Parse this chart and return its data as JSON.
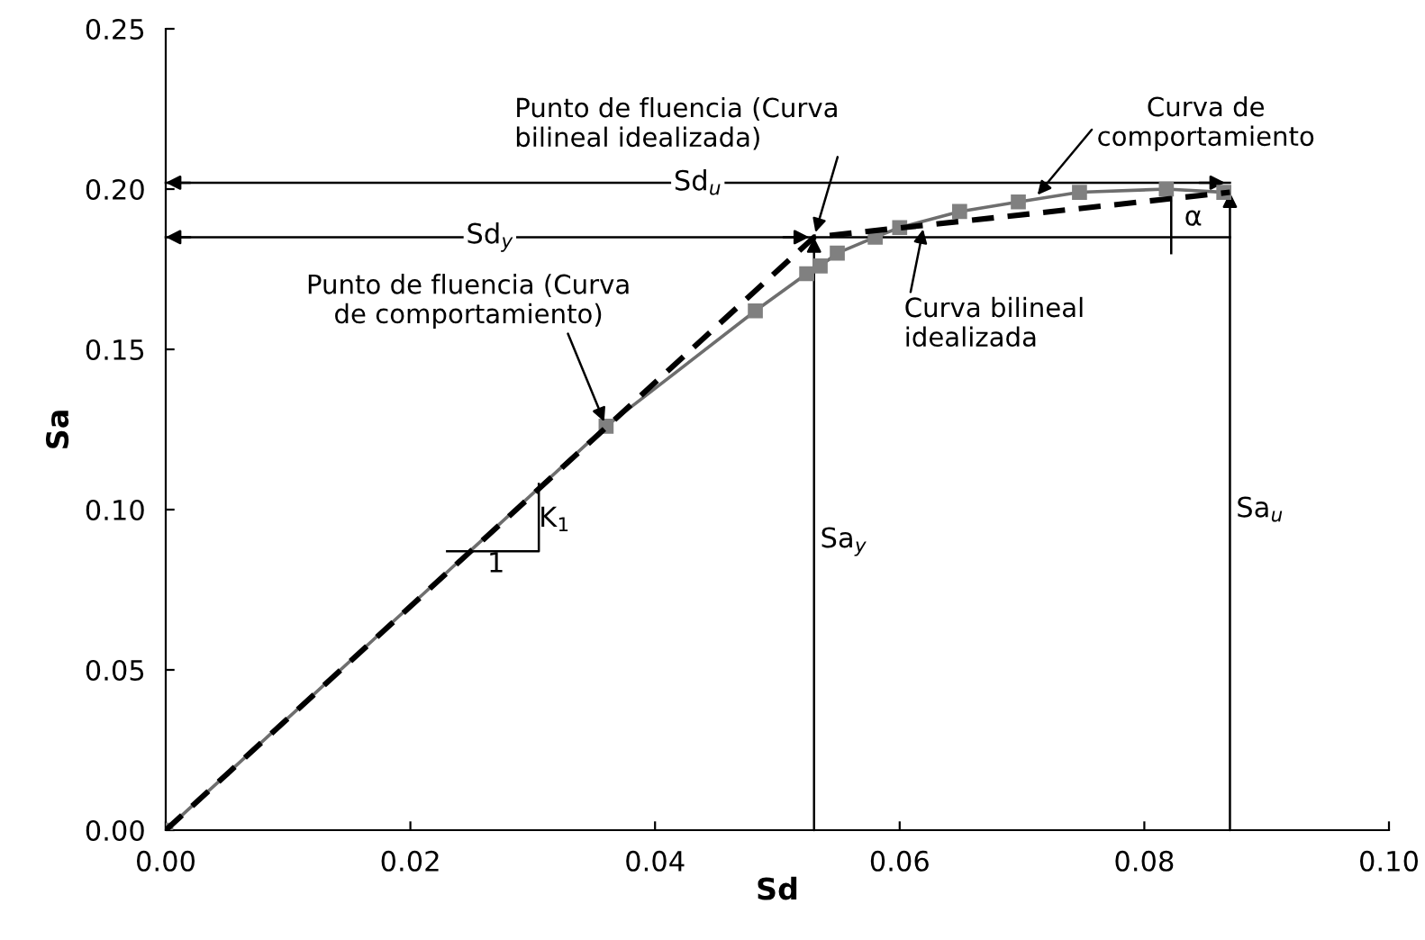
{
  "chart_data": {
    "type": "line",
    "xlabel": "Sd",
    "ylabel": "Sa",
    "xlim": [
      0,
      0.1
    ],
    "ylim": [
      0,
      0.25
    ],
    "xticks": [
      {
        "value": 0,
        "label": "0.00"
      },
      {
        "value": 0.02,
        "label": "0.02"
      },
      {
        "value": 0.04,
        "label": "0.04"
      },
      {
        "value": 0.06,
        "label": "0.06"
      },
      {
        "value": 0.08,
        "label": "0.08"
      },
      {
        "value": 0.1,
        "label": "0.10"
      }
    ],
    "yticks": [
      {
        "value": 0,
        "label": "0.00"
      },
      {
        "value": 0.05,
        "label": "0.05"
      },
      {
        "value": 0.1,
        "label": "0.10"
      },
      {
        "value": 0.15,
        "label": "0.15"
      },
      {
        "value": 0.2,
        "label": "0.20"
      },
      {
        "value": 0.25,
        "label": "0.25"
      }
    ],
    "grid": false,
    "legend": false,
    "series": [
      {
        "color": "#6e6e6e",
        "marker": "square",
        "line_style": "solid",
        "x": [
          0,
          0.036,
          0.0482,
          0.0524,
          0.0535,
          0.0549,
          0.058,
          0.06,
          0.0649,
          0.0697,
          0.0747,
          0.0818,
          0.0865
        ],
        "values": [
          0,
          0.126,
          0.162,
          0.1736,
          0.176,
          0.18,
          0.185,
          0.188,
          0.193,
          0.196,
          0.199,
          0.2,
          0.199
        ]
      },
      {
        "color": "#000000",
        "marker": "none",
        "line_style": "dashed",
        "x": [
          0,
          0.053,
          0.087
        ],
        "values": [
          0,
          0.185,
          0.199
        ]
      }
    ],
    "annotations": [
      {
        "text": "Punto de fluencia (Curva bilineal idealizada)",
        "x": 0.053,
        "y": 0.185
      },
      {
        "text": "Curva de comportamiento",
        "x": 0.071,
        "y": 0.197
      },
      {
        "text": "Curva bilineal idealizada",
        "x": 0.062,
        "y": 0.189
      },
      {
        "text": "Punto de fluencia (Curva de comportamiento)",
        "x": 0.036,
        "y": 0.126
      },
      "Sa$_{y}$",
      "Sa$_{u}$",
      "K$_{1}$",
      "1",
      "α"
    ],
    "ref_lines": [
      {
        "axis": "y",
        "value": 0.202,
        "label": "Sd$_{u}$",
        "line_style": "solid",
        "color": "#000000"
      },
      {
        "axis": "y",
        "value": 0.185,
        "label": "Sd$_{y}$",
        "line_style": "solid",
        "color": "#000000"
      }
    ]
  }
}
